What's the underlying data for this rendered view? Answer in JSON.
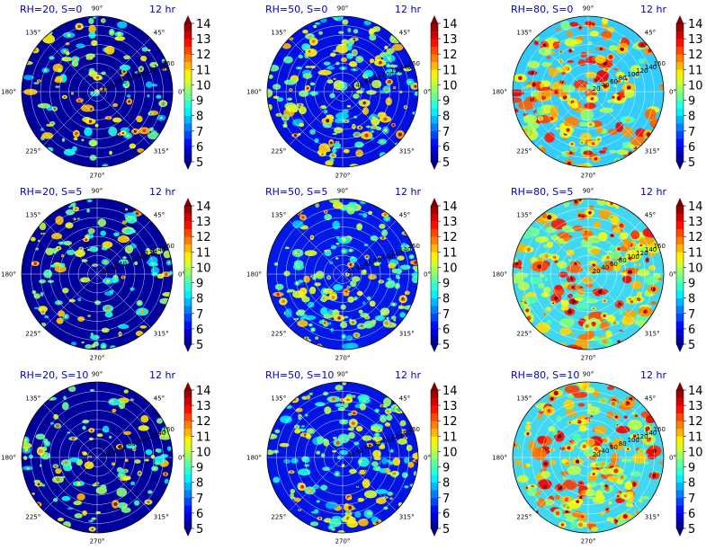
{
  "chart_data": {
    "type": "heatmap",
    "layout": "3x3 polar contour grid",
    "colormap": "jet",
    "colorbar": {
      "min": 5,
      "max": 14,
      "ticks": [
        "5",
        "6",
        "7",
        "8",
        "9",
        "10",
        "11",
        "12",
        "13",
        "14"
      ],
      "extend": "both"
    },
    "angle_labels": [
      "90°",
      "45°",
      "0°",
      "315°",
      "270°",
      "225°",
      "180°",
      "135°"
    ],
    "colors": {
      "title": "#0000cc",
      "background_low": "#00008f",
      "grid": "#ffffff"
    },
    "panels": [
      {
        "title": "RH=20, S=0",
        "time": "12 hr",
        "background": "#00009c",
        "radial_labels": [
          "20",
          "40",
          "60",
          "80",
          "100",
          "120",
          "140",
          "160"
        ],
        "spot_density": 0.35
      },
      {
        "title": "RH=50, S=0",
        "time": "12 hr",
        "background": "#0010e0",
        "radial_labels": [
          "20",
          "40",
          "60",
          "80",
          "100",
          "120",
          "140",
          "160"
        ],
        "spot_density": 0.7
      },
      {
        "title": "RH=80, S=0",
        "time": "12 hr",
        "background": "#33ccff",
        "radial_labels": [
          "20",
          "40",
          "60",
          "80",
          "100",
          "120",
          "140",
          "160"
        ],
        "spot_density": 1.0
      },
      {
        "title": "RH=20, S=5",
        "time": "12 hr",
        "background": "#00009c",
        "radial_labels": [
          "20",
          "40",
          "60",
          "80",
          "100",
          "120",
          "140",
          "160"
        ],
        "spot_density": 0.38
      },
      {
        "title": "RH=50, S=5",
        "time": "12 hr",
        "background": "#0018e8",
        "radial_labels": [
          "20",
          "40",
          "60",
          "80",
          "100",
          "120",
          "140",
          "160"
        ],
        "spot_density": 0.75
      },
      {
        "title": "RH=80, S=5",
        "time": "12 hr",
        "background": "#40d8f0",
        "radial_labels": [
          "20",
          "40",
          "60",
          "80",
          "100",
          "120",
          "140",
          "160"
        ],
        "spot_density": 1.0
      },
      {
        "title": "RH=20, S=10",
        "time": "12 hr",
        "background": "#00009c",
        "radial_labels": [
          "20",
          "40",
          "60",
          "80",
          "100",
          "120",
          "140",
          "160"
        ],
        "spot_density": 0.32
      },
      {
        "title": "RH=50, S=10",
        "time": "12 hr",
        "background": "#0014e4",
        "radial_labels": [
          "20",
          "40",
          "60",
          "80",
          "100",
          "120",
          "140",
          "160"
        ],
        "spot_density": 0.72
      },
      {
        "title": "RH=80, S=10",
        "time": "12 hr",
        "background": "#40d8f0",
        "radial_labels": [
          "20",
          "40",
          "60",
          "80",
          "100",
          "120",
          "140",
          "160"
        ],
        "spot_density": 1.0
      }
    ]
  }
}
